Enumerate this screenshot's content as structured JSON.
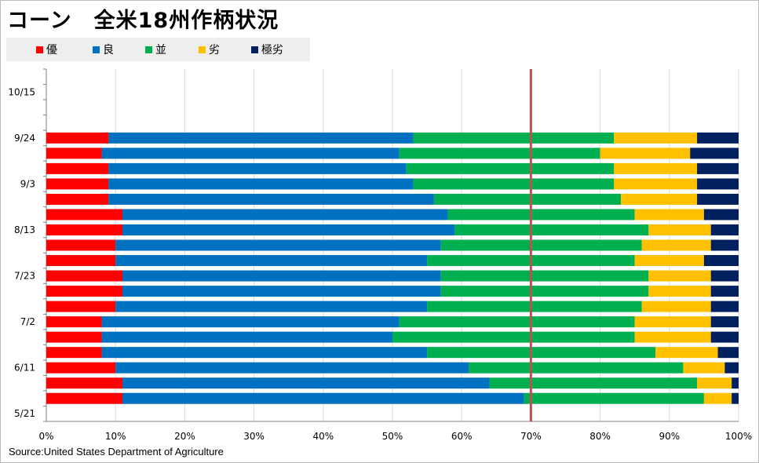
{
  "title": "コーン　全米18州作柄状況",
  "source": "Source:United States Department of Agriculture",
  "legend": [
    {
      "label": "優",
      "color": "#ff0000"
    },
    {
      "label": "良",
      "color": "#0070c0"
    },
    {
      "label": "並",
      "color": "#00b050"
    },
    {
      "label": "劣",
      "color": "#ffc000"
    },
    {
      "label": "極劣",
      "color": "#002060"
    }
  ],
  "chart_data": {
    "type": "bar",
    "orientation": "horizontal",
    "stacked": true,
    "title": "コーン　全米18州作柄状況",
    "categories": [
      "5/21",
      "5/28",
      "6/4",
      "6/11",
      "6/18",
      "6/25",
      "7/2",
      "7/9",
      "7/16",
      "7/23",
      "7/30",
      "8/6",
      "8/13",
      "8/20",
      "8/27",
      "9/3",
      "9/10",
      "9/17",
      "9/24",
      "10/1",
      "10/8",
      "10/15",
      "10/22"
    ],
    "category_tick_labels": [
      "10/15",
      "9/24",
      "9/3",
      "8/13",
      "7/23",
      "7/2",
      "6/11",
      "5/21"
    ],
    "series": [
      {
        "name": "優",
        "values": [
          null,
          11,
          11,
          10,
          8,
          8,
          8,
          10,
          11,
          11,
          10,
          10,
          11,
          11,
          9,
          9,
          9,
          8,
          9,
          null,
          null,
          null,
          null
        ]
      },
      {
        "name": "良",
        "values": [
          null,
          58,
          53,
          51,
          47,
          42,
          43,
          45,
          46,
          46,
          45,
          47,
          48,
          47,
          47,
          44,
          43,
          43,
          44,
          null,
          null,
          null,
          null
        ]
      },
      {
        "name": "並",
        "values": [
          null,
          26,
          30,
          31,
          33,
          35,
          34,
          31,
          30,
          30,
          30,
          29,
          28,
          27,
          27,
          29,
          30,
          29,
          29,
          null,
          null,
          null,
          null
        ]
      },
      {
        "name": "劣",
        "values": [
          null,
          4,
          5,
          6,
          9,
          11,
          11,
          10,
          9,
          9,
          10,
          10,
          9,
          10,
          11,
          12,
          12,
          13,
          12,
          null,
          null,
          null,
          null
        ]
      },
      {
        "name": "極劣",
        "values": [
          null,
          1,
          1,
          2,
          3,
          4,
          4,
          4,
          4,
          4,
          5,
          4,
          4,
          5,
          6,
          6,
          6,
          7,
          6,
          null,
          null,
          null,
          null
        ]
      }
    ],
    "xlim": [
      0,
      100
    ],
    "xticks": [
      "0%",
      "10%",
      "20%",
      "30%",
      "40%",
      "50%",
      "60%",
      "70%",
      "80%",
      "90%",
      "100%"
    ],
    "reference_line": {
      "value": 70,
      "color": "#c0504d"
    },
    "grid": true,
    "legend_position": "top-left"
  }
}
